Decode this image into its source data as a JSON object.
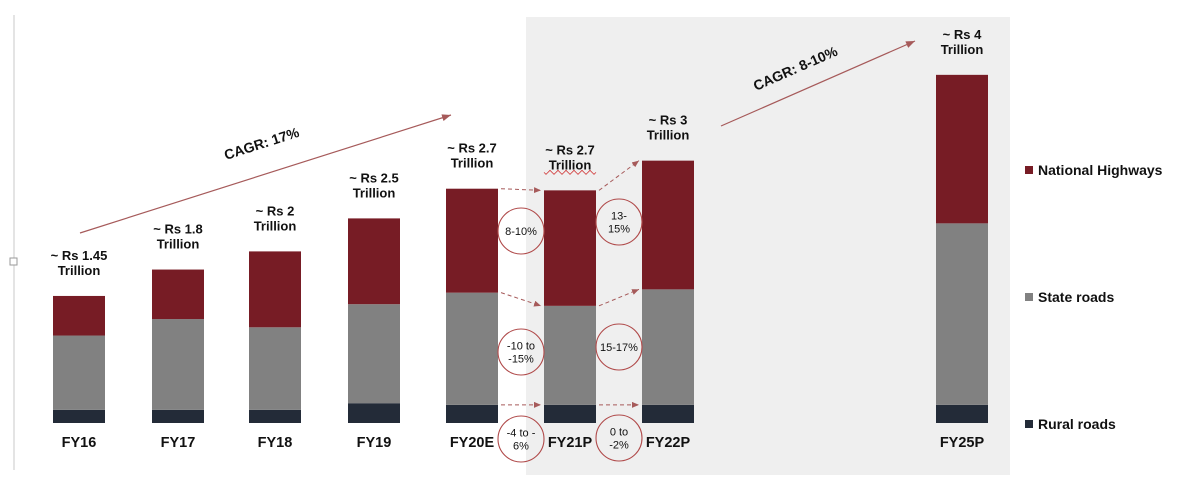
{
  "chart_data": {
    "type": "bar",
    "stacked": true,
    "categories": [
      "FY16",
      "FY17",
      "FY18",
      "FY19",
      "FY20E",
      "FY21P",
      "FY22P",
      "FY25P"
    ],
    "total_labels": [
      [
        "~ Rs 1.45",
        "Trillion"
      ],
      [
        "~ Rs 1.8",
        "Trillion"
      ],
      [
        "~ Rs 2",
        "Trillion"
      ],
      [
        "~ Rs 2.5",
        "Trillion"
      ],
      [
        "~ Rs 2.7",
        "Trillion"
      ],
      [
        "~ Rs 2.7",
        "Trillion"
      ],
      [
        "~ Rs 3",
        "Trillion"
      ],
      [
        "~ Rs 4",
        "Trillion"
      ]
    ],
    "series": [
      {
        "name": "Rural roads",
        "color": "#232b38",
        "values": [
          0.08,
          0.08,
          0.08,
          0.12,
          0.11,
          0.11,
          0.11,
          0.11
        ]
      },
      {
        "name": "State roads",
        "color": "#818181",
        "values": [
          0.45,
          0.55,
          0.5,
          0.6,
          0.68,
          0.6,
          0.7,
          1.1
        ]
      },
      {
        "name": "National Highways",
        "color": "#771c25",
        "values": [
          0.24,
          0.3,
          0.46,
          0.52,
          0.63,
          0.7,
          0.78,
          0.9
        ]
      }
    ],
    "growth_annotations": [
      {
        "series": "National Highways",
        "from": "FY20E",
        "to": "FY21P",
        "text": [
          "8-10%"
        ]
      },
      {
        "series": "State roads",
        "from": "FY20E",
        "to": "FY21P",
        "text": [
          "-10 to",
          "-15%"
        ]
      },
      {
        "series": "Rural roads",
        "from": "FY20E",
        "to": "FY21P",
        "text": [
          "-4 to -",
          "6%"
        ]
      },
      {
        "series": "National Highways",
        "from": "FY21P",
        "to": "FY22P",
        "text": [
          "13-",
          "15%"
        ]
      },
      {
        "series": "State roads",
        "from": "FY21P",
        "to": "FY22P",
        "text": [
          "15-17%"
        ]
      },
      {
        "series": "Rural roads",
        "from": "FY21P",
        "to": "FY22P",
        "text": [
          "0 to",
          "-2%"
        ]
      }
    ],
    "cagr_annotations": [
      {
        "from": "FY16",
        "to": "FY20E",
        "text": "CAGR: 17%"
      },
      {
        "from": "FY22P",
        "to": "FY25P",
        "text": "CAGR: 8-10%"
      }
    ],
    "highlight_range": [
      "FY21P",
      "FY25P"
    ],
    "colors": {
      "highlight_bg": "#efefef",
      "arrow": "#a65a5a",
      "circle": "#b04a4a"
    },
    "legend": {
      "placement": "right",
      "order": [
        "National Highways",
        "State roads",
        "Rural roads"
      ]
    }
  }
}
